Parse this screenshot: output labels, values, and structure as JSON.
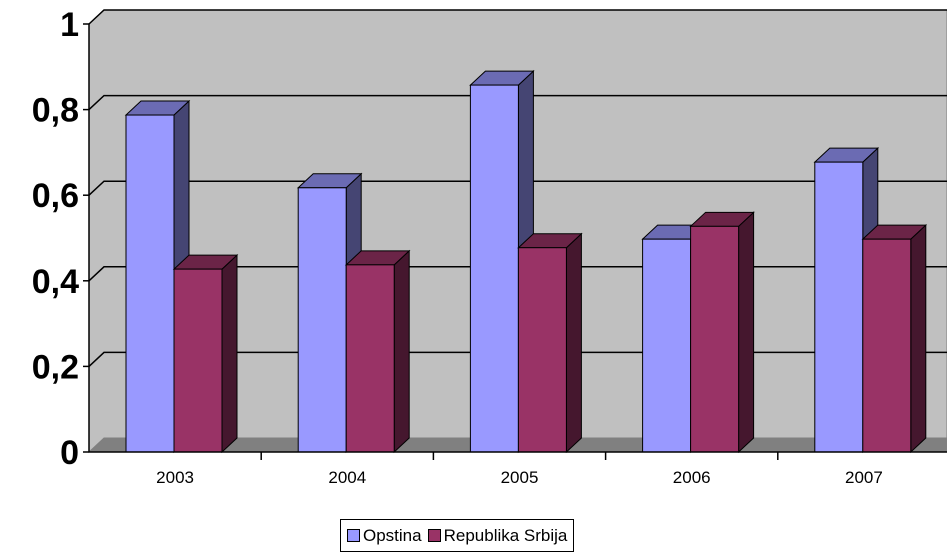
{
  "chart_data": {
    "type": "bar",
    "categories": [
      "2003",
      "2004",
      "2005",
      "2006",
      "2007"
    ],
    "series": [
      {
        "name": "Opstina",
        "values": [
          0.82,
          0.65,
          0.89,
          0.53,
          0.71
        ],
        "color": "#9999ff"
      },
      {
        "name": "Republika Srbija",
        "values": [
          0.46,
          0.47,
          0.51,
          0.56,
          0.53
        ],
        "color": "#993366"
      }
    ],
    "ylim": [
      0,
      1
    ],
    "yticks": [
      "0",
      "0,2",
      "0,4",
      "0,6",
      "0,8",
      "1"
    ],
    "grid": true,
    "legend": "bottom",
    "plot_background": "#c0c0c0"
  }
}
